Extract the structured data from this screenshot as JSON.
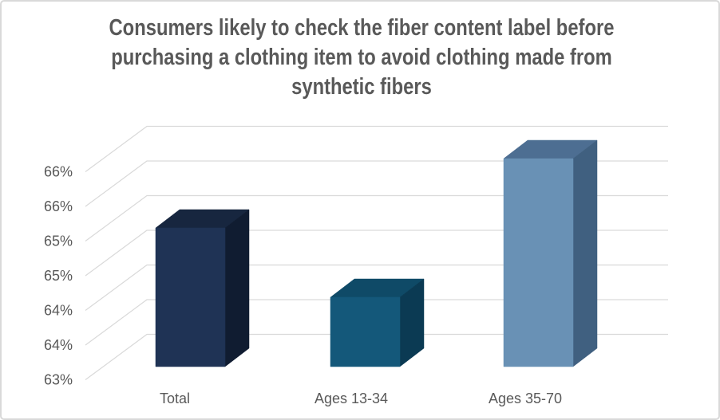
{
  "window": {
    "background": "#FFFFFF",
    "border_color": "#D9D9D9"
  },
  "chart": {
    "title": "Consumers likely to check the fiber content label before purchasing a clothing item to avoid clothing made from synthetic fibers",
    "title_lines": [
      "Consumers likely to check the fiber content label before",
      "purchasing a clothing item to avoid clothing made from",
      "synthetic fibers"
    ],
    "title_color": "#595959",
    "axis_text_color": "#595959",
    "gridline_color": "#D9D9D9"
  },
  "chart_data": {
    "type": "bar",
    "projection": "3d-column",
    "title": "Consumers likely to check the fiber content label before purchasing a clothing item to avoid clothing made from synthetic fibers",
    "categories": [
      "Total",
      "Ages 13-34",
      "Ages 35-70"
    ],
    "values": [
      65,
      64,
      66
    ],
    "value_unit": "percent",
    "xlabel": "",
    "ylabel": "",
    "ylim": [
      63,
      66.5
    ],
    "y_major_unit": 0.5,
    "y_tick_labels_bottom_to_top": [
      "63%",
      "64%",
      "64%",
      "65%",
      "65%",
      "66%",
      "66%"
    ],
    "grid": true,
    "legend": "none",
    "bar_face_colors": [
      {
        "front": "#1F3355",
        "top": "#17263F",
        "side": "#101C31"
      },
      {
        "front": "#14587A",
        "top": "#0F4A67",
        "side": "#0B3A53"
      },
      {
        "front": "#6991B5",
        "top": "#4D6E92",
        "side": "#406080"
      }
    ]
  }
}
